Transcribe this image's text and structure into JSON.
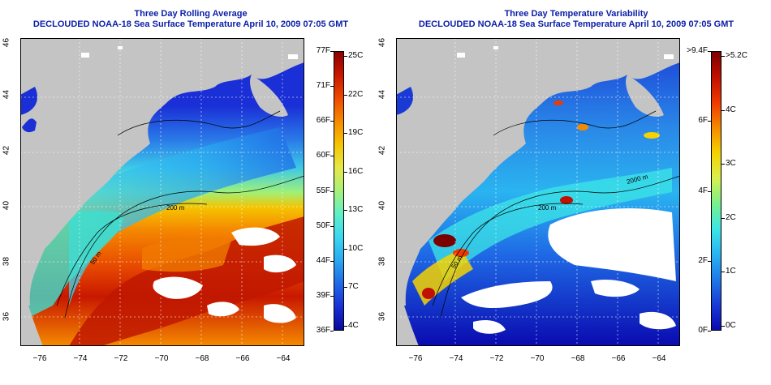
{
  "left_panel": {
    "title1": "Three Day Rolling Average",
    "title2": "DECLOUDED NOAA-18 Sea Surface Temperature April 10, 2009 07:05 GMT",
    "colorbar": {
      "f_labels": [
        "77F",
        "71F",
        "66F",
        "60F",
        "55F",
        "50F",
        "44F",
        "39F",
        "36F"
      ],
      "c_labels": [
        "25C",
        "22C",
        "19C",
        "16C",
        "13C",
        "10C",
        "7C",
        "4C"
      ],
      "colors_top_to_bottom": [
        "#8b0000",
        "#c81800",
        "#ee4a00",
        "#f58a00",
        "#f5c400",
        "#e6e84a",
        "#a8f07a",
        "#5ef0c8",
        "#3cd6f0",
        "#2aa8f0",
        "#1f6ae6",
        "#1a2fd6",
        "#0a0a9a"
      ]
    },
    "contour_labels": [
      "200 m",
      "50 m"
    ]
  },
  "right_panel": {
    "title1": "Three Day Temperature Variability",
    "title2": "DECLOUDED NOAA-18 Sea Surface Temperature April 10, 2009 07:05 GMT",
    "colorbar": {
      "f_labels": [
        ">9.4F",
        "6F",
        "4F",
        "2F",
        "0F"
      ],
      "c_labels": [
        ">5.2C",
        "4C",
        "3C",
        "2C",
        "1C",
        "0C"
      ],
      "colors_top_to_bottom": [
        "#7a0000",
        "#c01000",
        "#ee3a00",
        "#f58a00",
        "#f5d200",
        "#d8f050",
        "#7af08a",
        "#3ce6e6",
        "#2ab4f0",
        "#1f7ae6",
        "#1a3ad6",
        "#0a0ab0"
      ]
    },
    "contour_labels": [
      "200 m",
      "2000 m",
      "50 m"
    ]
  },
  "axes": {
    "lat_ticks": [
      "46",
      "44",
      "42",
      "40",
      "38",
      "36"
    ],
    "lon_ticks": [
      "−76",
      "−74",
      "−72",
      "−70",
      "−68",
      "−66",
      "−64"
    ]
  }
}
